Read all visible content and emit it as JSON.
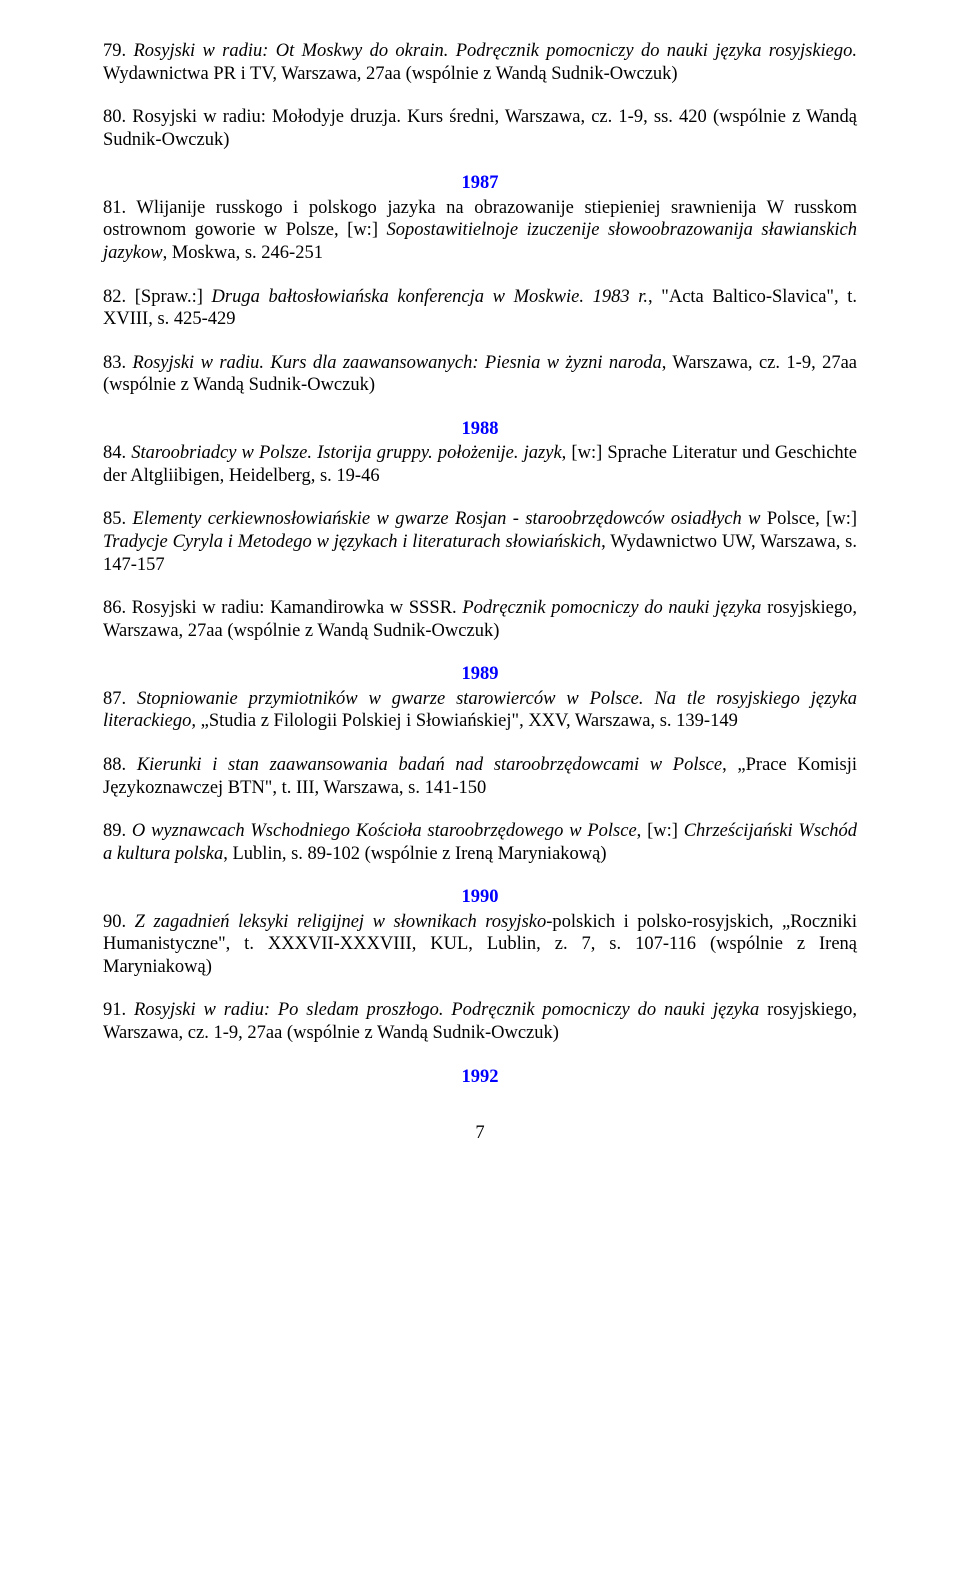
{
  "entries": {
    "e79": {
      "num": "79. ",
      "t1": "Rosyjski w radiu: Ot Moskwy do okrain. Podręcznik pomocniczy do nauki języka rosyjskiego.",
      "t2": " Wydawnictwa PR i TV, Warszawa, 27aa (wspólnie z Wandą Sudnik-Owczuk)"
    },
    "e80": {
      "num": "80. ",
      "t1": "Rosyjski w radiu: Mołodyje druzja. Kurs średni, Warszawa, cz. 1-9, ss. 420 (wspólnie z Wandą Sudnik-Owczuk)"
    },
    "y1987": "1987",
    "e81": {
      "num": "81. ",
      "t1": "Wlijanije russkogo i polskogo jazyka na obrazowanije stiepieniej srawnienija W russkom ostrownom goworie w Polsze",
      "t2": ", [w:] ",
      "t3": "Sopostawitielnoje izuczenije słowoobrazowanija sławianskich jazykow",
      "t4": ", Moskwa, s. 246-251"
    },
    "e82": {
      "num": "82. [Spraw.:] ",
      "t1": "Druga bałtosłowiańska konferencja w Moskwie. 1983 r.",
      "t2": ", \"Acta Baltico-Slavica\", t. XVIII, s. 425-429"
    },
    "e83": {
      "num": "83. ",
      "t1": "Rosyjski w radiu. Kurs dla zaawansowanych: Piesnia w żyzni naroda",
      "t2": ", Warszawa, cz. 1-9, 27aa (wspólnie z Wandą Sudnik-Owczuk)"
    },
    "y1988": "1988",
    "e84": {
      "num": "84. ",
      "t1": "Staroobriadcy w Polsze. Istorija gruppy. położenije. jazyk",
      "t2": ", [w:] Sprache Literatur und Geschichte der Altgliibigen, Heidelberg, s. 19-46"
    },
    "e85": {
      "num": "85. ",
      "t1": "Elementy cerkiewnosłowiańskie w gwarze Rosjan - staroobrzędowców osiadłych w ",
      "t2": "Polsce, [w:] ",
      "t3": "Tradycje Cyryla i Metodego w językach i literaturach słowiańskich",
      "t4": ", Wydawnictwo UW, Warszawa, s. 147-157"
    },
    "e86": {
      "num": "86. ",
      "t1": "Rosyjski w radiu: Kamandirowka w SSSR",
      "t2": ". ",
      "t3": "Podręcznik pomocniczy do nauki języka ",
      "t4": "rosyjskiego, Warszawa, 27aa (wspólnie z Wandą Sudnik-Owczuk)"
    },
    "y1989": "1989",
    "e87": {
      "num": "87. ",
      "t1": "Stopniowanie przymiotników w gwarze starowierców w Polsce. Na tle rosyjskiego języka literackiego, ",
      "t2": "„Studia z Filologii Polskiej i Słowiańskiej\", XXV, Warszawa, s. 139-149"
    },
    "e88": {
      "num": "88. ",
      "t1": "Kierunki i stan zaawansowania badań nad staroobrzędowcami w Polsce",
      "t2": ", „Prace Komisji Językoznawczej BTN\", t. III, Warszawa, s. 141-150"
    },
    "e89": {
      "num": "89. ",
      "t1": "O wyznawcach Wschodniego Kościoła staroobrzędowego w Polsce",
      "t2": ", [w:] ",
      "t3": "Chrześcijański Wschód a kultura polska",
      "t4": ", Lublin, s. 89-102 (wspólnie z Ireną Maryniakową)"
    },
    "y1990": "1990",
    "e90": {
      "num": "90. ",
      "t1": "Z zagadnień leksyki religijnej w słownikach rosyjsko-",
      "t2": "polskich i polsko-rosyjskich, „Roczniki Humanistyczne\", t. XXXVII-XXXVIII, KUL, Lublin, z. 7, s. 107-116 (wspólnie z Ireną Maryniakową)"
    },
    "e91": {
      "num": "91. ",
      "t1": "Rosyjski w radiu: Po sledam proszłogo. Podręcznik pomocniczy do nauki języka ",
      "t2": "rosyjskiego, Warszawa, cz. 1-9, 27aa (wspólnie z Wandą Sudnik-Owczuk)"
    },
    "y1992": "1992"
  },
  "pagenum": "7"
}
